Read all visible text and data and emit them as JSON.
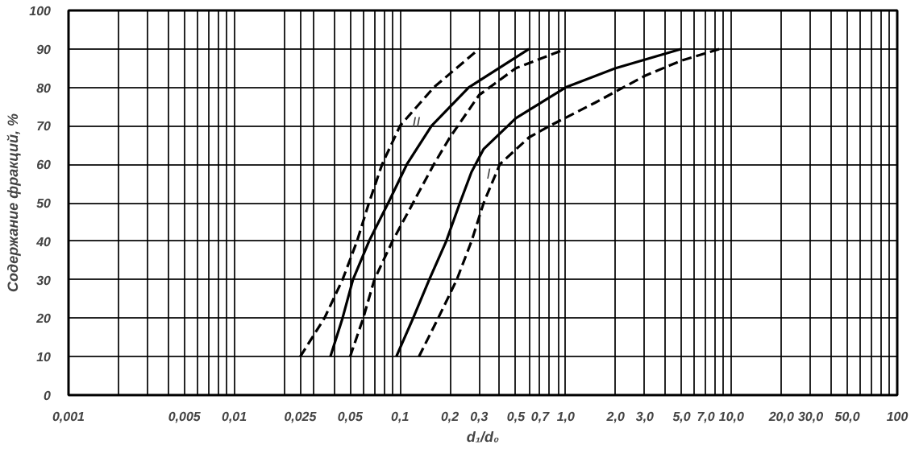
{
  "chart_data": {
    "type": "line",
    "xlabel": "d₁/d₀",
    "ylabel": "Содержание фракций, %",
    "log": "x",
    "grid": true,
    "marker": "none",
    "xlim": [
      0.001,
      100
    ],
    "ylim": [
      0,
      100
    ],
    "xticks": [
      {
        "value": 0.001,
        "label": "0,001"
      },
      {
        "value": 0.002,
        "label": null
      },
      {
        "value": 0.003,
        "label": null
      },
      {
        "value": 0.004,
        "label": null
      },
      {
        "value": 0.005,
        "label": "0,005"
      },
      {
        "value": 0.006,
        "label": null
      },
      {
        "value": 0.007,
        "label": null
      },
      {
        "value": 0.008,
        "label": null
      },
      {
        "value": 0.009,
        "label": null
      },
      {
        "value": 0.01,
        "label": "0,01"
      },
      {
        "value": 0.02,
        "label": null
      },
      {
        "value": 0.025,
        "label": "0,025"
      },
      {
        "value": 0.03,
        "label": null
      },
      {
        "value": 0.04,
        "label": null
      },
      {
        "value": 0.05,
        "label": "0,05"
      },
      {
        "value": 0.06,
        "label": null
      },
      {
        "value": 0.07,
        "label": null
      },
      {
        "value": 0.08,
        "label": null
      },
      {
        "value": 0.09,
        "label": null
      },
      {
        "value": 0.1,
        "label": "0,1"
      },
      {
        "value": 0.2,
        "label": "0,2"
      },
      {
        "value": 0.3,
        "label": "0,3"
      },
      {
        "value": 0.4,
        "label": null
      },
      {
        "value": 0.5,
        "label": "0,5"
      },
      {
        "value": 0.6,
        "label": null
      },
      {
        "value": 0.7,
        "label": "0,7"
      },
      {
        "value": 0.8,
        "label": null
      },
      {
        "value": 0.9,
        "label": null
      },
      {
        "value": 1,
        "label": "1,0"
      },
      {
        "value": 2,
        "label": "2,0"
      },
      {
        "value": 3,
        "label": "3,0"
      },
      {
        "value": 4,
        "label": null
      },
      {
        "value": 5,
        "label": "5,0"
      },
      {
        "value": 6,
        "label": null
      },
      {
        "value": 7,
        "label": "7,0"
      },
      {
        "value": 8,
        "label": null
      },
      {
        "value": 9,
        "label": null
      },
      {
        "value": 10,
        "label": "10,0"
      },
      {
        "value": 20,
        "label": "20,0"
      },
      {
        "value": 30,
        "label": "30,0"
      },
      {
        "value": 40,
        "label": null
      },
      {
        "value": 50,
        "label": "50,0"
      },
      {
        "value": 60,
        "label": null
      },
      {
        "value": 70,
        "label": null
      },
      {
        "value": 80,
        "label": null
      },
      {
        "value": 90,
        "label": null
      },
      {
        "value": 100,
        "label": "100"
      }
    ],
    "yticks": [
      0,
      10,
      20,
      30,
      40,
      50,
      60,
      70,
      80,
      90,
      100
    ],
    "series": [
      {
        "color": "#000000",
        "line_style": "dashed",
        "x": [
          0.025,
          0.035,
          0.045,
          0.055,
          0.065,
          0.078,
          0.1,
          0.16,
          0.3
        ],
        "values": [
          10,
          20,
          30,
          40,
          50,
          60,
          70,
          80,
          90
        ]
      },
      {
        "color": "#000000",
        "line_style": "solid",
        "x": [
          0.038,
          0.045,
          0.052,
          0.065,
          0.085,
          0.11,
          0.155,
          0.26,
          0.6
        ],
        "values": [
          10,
          20,
          30,
          40,
          50,
          60,
          70,
          80,
          90
        ]
      },
      {
        "color": "#000000",
        "line_style": "dashed",
        "x": [
          0.05,
          0.06,
          0.07,
          0.09,
          0.12,
          0.16,
          0.2,
          0.3,
          0.5,
          1.0
        ],
        "values": [
          10,
          20,
          30,
          40,
          50,
          60,
          67,
          78,
          85,
          90
        ]
      },
      {
        "color": "#000000",
        "line_style": "solid",
        "x": [
          0.095,
          0.12,
          0.15,
          0.19,
          0.23,
          0.27,
          0.32,
          0.5,
          1.0,
          2.0,
          5.0
        ],
        "values": [
          10,
          20,
          30,
          40,
          50,
          58,
          64,
          72,
          80,
          85,
          90
        ]
      },
      {
        "color": "#000000",
        "line_style": "dashed",
        "x": [
          0.13,
          0.17,
          0.22,
          0.27,
          0.32,
          0.4,
          0.6,
          0.8,
          1.5,
          3.0,
          5.0,
          8.5
        ],
        "values": [
          10,
          20,
          30,
          40,
          50,
          60,
          67,
          70,
          76,
          83,
          87,
          90
        ]
      }
    ],
    "annotations": [
      {
        "text": "II",
        "x": 0.1,
        "y": 70
      },
      {
        "text": "I",
        "x": 0.4,
        "y": 60
      }
    ]
  }
}
